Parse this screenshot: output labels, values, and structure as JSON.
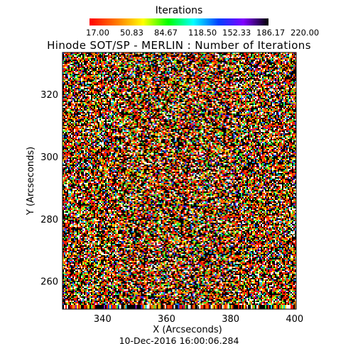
{
  "chart_data": {
    "type": "heatmap",
    "title": "Hinode SOT/SP - MERLIN : Number of Iterations",
    "colorbar": {
      "title": "Iterations",
      "ticks": [
        "17.00",
        "50.83",
        "84.67",
        "118.50",
        "152.33",
        "186.17",
        "220.00"
      ],
      "range": [
        17.0,
        220.0
      ],
      "colormap": "rainbow (red → yellow → green → cyan → blue → violet → black)"
    },
    "xlabel": "X (Arcseconds)",
    "ylabel": "Y (Arcseconds)",
    "xticks": [
      340,
      360,
      380,
      400
    ],
    "yticks": [
      260,
      280,
      300,
      320
    ],
    "xlim": [
      327.5,
      400.5
    ],
    "ylim": [
      251.0,
      333.5
    ],
    "timestamp": "10-Dec-2016 16:00:06.284",
    "colors": {
      "black": "#000000",
      "white": "#ffffff",
      "red": "#ff1a00",
      "orange": "#ff8c00",
      "yellow": "#ffe600",
      "green": "#32e632",
      "cyan": "#00d2e6",
      "blue": "#1e50ff",
      "violet": "#8c14c8"
    }
  }
}
